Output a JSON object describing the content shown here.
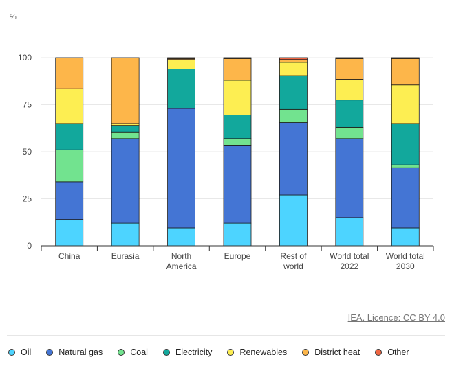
{
  "chart_data": {
    "type": "bar",
    "stacked": true,
    "y_unit_label": "%",
    "ylim": [
      0,
      100
    ],
    "yticks": [
      0,
      25,
      50,
      75,
      100
    ],
    "grid": true,
    "legend_position": "bottom",
    "categories": [
      [
        "China"
      ],
      [
        "Eurasia"
      ],
      [
        "North",
        "America"
      ],
      [
        "Europe"
      ],
      [
        "Rest of",
        "world"
      ],
      [
        "World total",
        "2022"
      ],
      [
        "World total",
        "2030"
      ]
    ],
    "series": [
      {
        "name": "Oil",
        "color": "#4dd4ff",
        "values": [
          14,
          12,
          9.5,
          12,
          27,
          15,
          9.5
        ]
      },
      {
        "name": "Natural gas",
        "color": "#4475d4",
        "values": [
          20,
          45,
          63.5,
          41.5,
          38.5,
          42,
          32
        ]
      },
      {
        "name": "Coal",
        "color": "#72e38f",
        "values": [
          17,
          3.5,
          0,
          3.5,
          7,
          6,
          1.5
        ]
      },
      {
        "name": "Electricity",
        "color": "#12a89c",
        "values": [
          14,
          3.5,
          21,
          12.5,
          18,
          14.5,
          22
        ]
      },
      {
        "name": "Renewables",
        "color": "#fdee52",
        "values": [
          18.5,
          1,
          5,
          18.5,
          7,
          11,
          20.5
        ]
      },
      {
        "name": "District heat",
        "color": "#fdb64a",
        "values": [
          16.5,
          35,
          0.5,
          11.5,
          1.5,
          11,
          14
        ]
      },
      {
        "name": "Other",
        "color": "#f06642",
        "values": [
          0,
          0,
          0.5,
          0.5,
          1,
          0.5,
          0.5
        ]
      }
    ]
  },
  "source_text": "IEA. Licence: CC BY 4.0"
}
